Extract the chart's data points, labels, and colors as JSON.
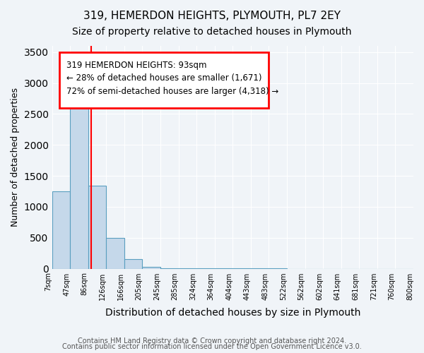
{
  "title": "319, HEMERDON HEIGHTS, PLYMOUTH, PL7 2EY",
  "subtitle": "Size of property relative to detached houses in Plymouth",
  "xlabel": "Distribution of detached houses by size in Plymouth",
  "ylabel": "Number of detached properties",
  "bar_color": "#c5d8ea",
  "bar_edge_color": "#5a9fc0",
  "bin_labels": [
    "7sqm",
    "47sqm",
    "86sqm",
    "126sqm",
    "166sqm",
    "205sqm",
    "245sqm",
    "285sqm",
    "324sqm",
    "364sqm",
    "404sqm",
    "443sqm",
    "483sqm",
    "522sqm",
    "562sqm",
    "602sqm",
    "641sqm",
    "681sqm",
    "721sqm",
    "760sqm",
    "800sqm"
  ],
  "bar_values": [
    1250,
    2580,
    1340,
    500,
    150,
    30,
    10,
    5,
    2,
    1,
    1,
    1,
    1,
    0,
    0,
    0,
    0,
    0,
    0,
    0
  ],
  "ylim": [
    0,
    3600
  ],
  "yticks": [
    0,
    500,
    1000,
    1500,
    2000,
    2500,
    3000,
    3500
  ],
  "annotation_line1": "319 HEMERDON HEIGHTS: 93sqm",
  "annotation_line2": "← 28% of detached houses are smaller (1,671)",
  "annotation_line3": "72% of semi-detached houses are larger (4,318) →",
  "annotation_box_color": "#ff0000",
  "property_line_x": 1.2,
  "background_color": "#f0f4f8",
  "grid_color": "#ffffff",
  "footer_line1": "Contains HM Land Registry data © Crown copyright and database right 2024.",
  "footer_line2": "Contains public sector information licensed under the Open Government Licence v3.0."
}
